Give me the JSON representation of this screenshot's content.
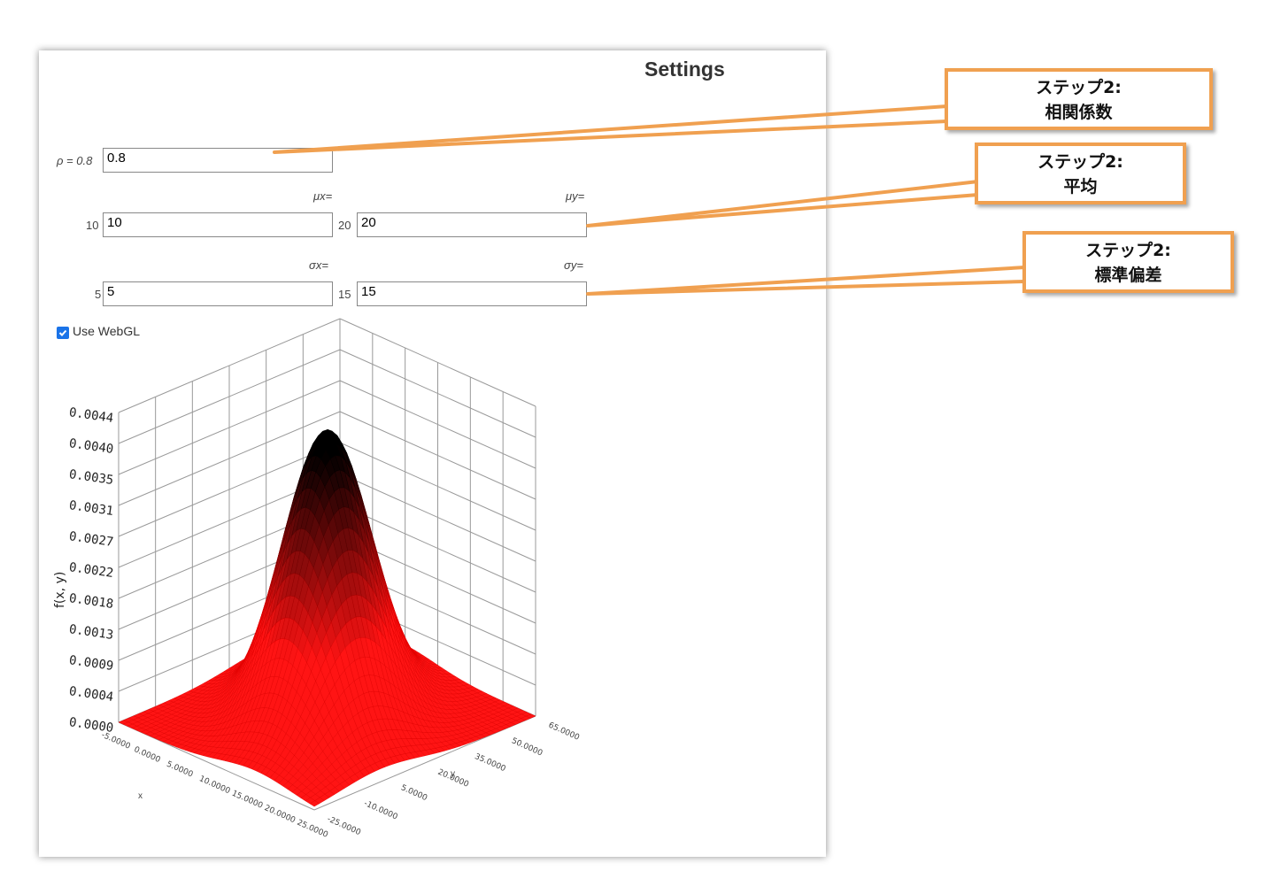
{
  "settings": {
    "title": "Settings",
    "rho": {
      "label": "ρ = 0.8",
      "value": "0.8"
    },
    "mu_x": {
      "header": "μx=",
      "side_label": "10",
      "value": "10"
    },
    "mu_y": {
      "header": "μy=",
      "side_label": "20",
      "value": "20"
    },
    "sigma_x": {
      "header": "σx=",
      "side_label": "5",
      "value": "5"
    },
    "sigma_y": {
      "header": "σy=",
      "side_label": "15",
      "value": "15"
    },
    "webgl": {
      "label": "Use WebGL",
      "checked": true
    }
  },
  "callouts": [
    {
      "line1": "ステップ2:",
      "line2": "相関係数"
    },
    {
      "line1": "ステップ2:",
      "line2": "平均"
    },
    {
      "line1": "ステップ2:",
      "line2": "標準偏差"
    }
  ],
  "colors": {
    "callout_border": "#f0a050",
    "surface_peak": "#000000",
    "surface_base": "#ff1a1a",
    "checkbox": "#1a73e8"
  },
  "chart_data": {
    "type": "surface",
    "zlabel": "f(x, y)",
    "xlabel": "x",
    "ylabel": "y",
    "z_ticks": [
      "0.0044",
      "0.0040",
      "0.0035",
      "0.0031",
      "0.0027",
      "0.0022",
      "0.0018",
      "0.0013",
      "0.0009",
      "0.0004",
      "0.0000"
    ],
    "x_ticks": [
      "-5.0000",
      "0.0000",
      "5.0000",
      "10.0000",
      "15.0000",
      "20.0000",
      "25.0000"
    ],
    "y_ticks": [
      "-25.0000",
      "-10.0000",
      "5.0000",
      "20.0000",
      "35.0000",
      "50.0000",
      "65.0000"
    ],
    "grid": true
  }
}
